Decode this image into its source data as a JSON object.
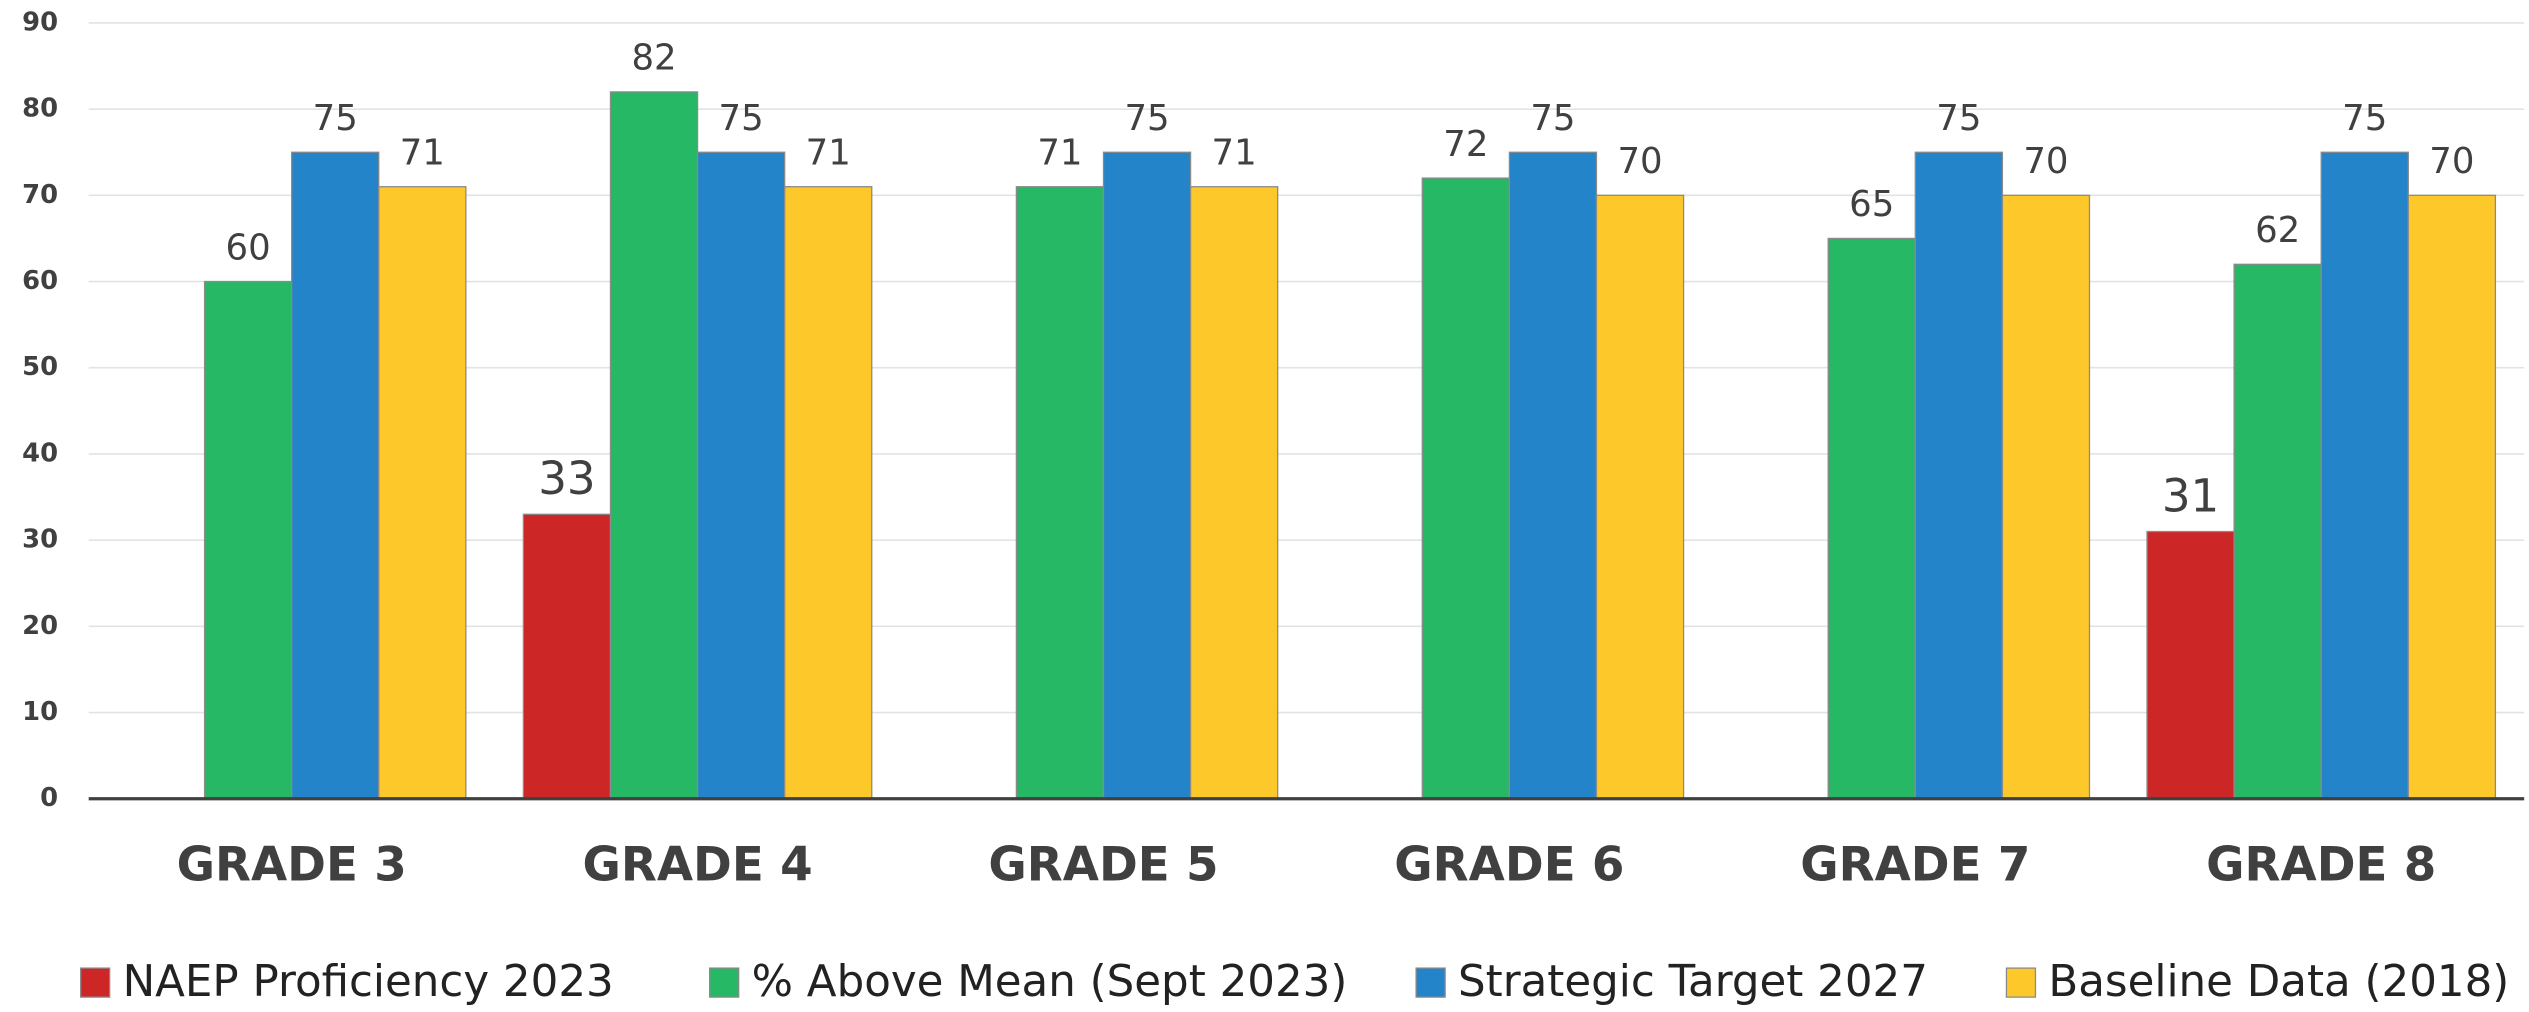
{
  "chart_data": {
    "type": "bar",
    "categories": [
      "GRADE 3",
      "GRADE 4",
      "GRADE 5",
      "GRADE 6",
      "GRADE 7",
      "GRADE 8"
    ],
    "series": [
      {
        "name": "NAEP Proficiency 2023",
        "color": "#cc2626",
        "values": [
          null,
          33,
          null,
          null,
          null,
          31
        ]
      },
      {
        "name": "% Above Mean (Sept 2023)",
        "color": "#27b866",
        "values": [
          60,
          82,
          71,
          72,
          65,
          62
        ]
      },
      {
        "name": "Strategic Target 2027",
        "color": "#2484c9",
        "values": [
          75,
          75,
          75,
          75,
          75,
          75
        ]
      },
      {
        "name": "Baseline Data (2018)",
        "color": "#fdc82a",
        "values": [
          71,
          71,
          71,
          70,
          70,
          70
        ]
      }
    ],
    "ylim": [
      0,
      90
    ],
    "yticks": [
      0,
      10,
      20,
      30,
      40,
      50,
      60,
      70,
      80,
      90
    ],
    "grid": true,
    "legend": "bottom"
  }
}
